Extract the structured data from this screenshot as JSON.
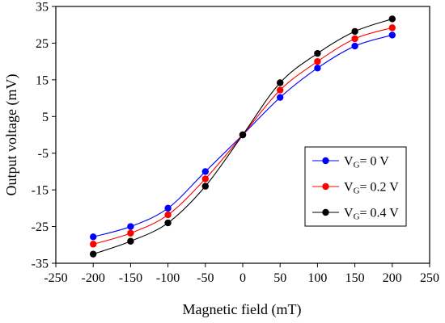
{
  "chart_data": {
    "type": "line",
    "xlabel": "Magnetic field (mT)",
    "ylabel": "Output voltage (mV)",
    "xlim": [
      -250,
      250
    ],
    "ylim": [
      -35,
      35
    ],
    "xticks": [
      -250,
      -200,
      -150,
      -100,
      -50,
      0,
      50,
      100,
      150,
      200,
      250
    ],
    "yticks": [
      -35,
      -25,
      -15,
      -5,
      5,
      15,
      25,
      35
    ],
    "grid": false,
    "legend_position": "right",
    "x": [
      -200,
      -150,
      -100,
      -50,
      0,
      50,
      100,
      150,
      200
    ],
    "series": [
      {
        "legend": {
          "prefix": "V",
          "sub": "G",
          "suffix": "= 0 V"
        },
        "color": "#0000ff",
        "values": [
          -27.8,
          -25,
          -20,
          -10,
          0,
          10.2,
          18.2,
          24.2,
          27.2
        ]
      },
      {
        "legend": {
          "prefix": "V",
          "sub": "G",
          "suffix": "= 0.2 V"
        },
        "color": "#ff0000",
        "values": [
          -29.8,
          -26.8,
          -21.8,
          -12,
          0,
          12.2,
          20,
          26.2,
          29.2
        ]
      },
      {
        "legend": {
          "prefix": "V",
          "sub": "G",
          "suffix": "= 0.4 V"
        },
        "color": "#000000",
        "values": [
          -32.5,
          -29,
          -24,
          -14,
          0,
          14.2,
          22.2,
          28.2,
          31.6
        ]
      }
    ]
  }
}
